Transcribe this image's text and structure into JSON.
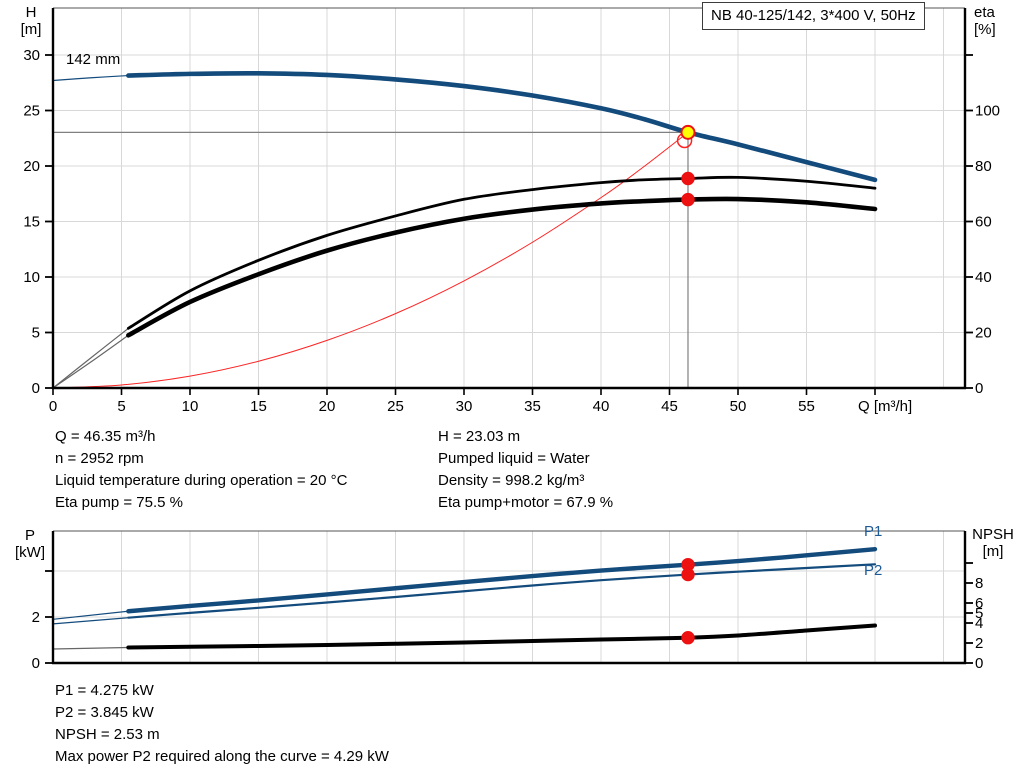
{
  "window": {
    "title_box": "NB 40-125/142, 3*400 V, 50Hz"
  },
  "colors": {
    "curve_blue": "#134b7d",
    "curve_black": "#000000",
    "marker_red": "#ee1111",
    "marker_yellow": "#ffff00",
    "system_red": "#ff2222",
    "grid": "#d8d8d8",
    "crosshair": "#808080",
    "axis": "#000000",
    "thin_start": "#666666"
  },
  "labels": {
    "h_axis": [
      "H",
      "[m]"
    ],
    "eta_axis": [
      "eta",
      "[%]"
    ],
    "q_axis": "Q [m³/h]",
    "p_axis": [
      "P",
      "[kW]"
    ],
    "npsh_axis": [
      "NPSH",
      "[m]"
    ],
    "impeller": "142 mm",
    "p1": "P1",
    "p2": "P2"
  },
  "info_top_left": [
    "Q = 46.35 m³/h",
    "n = 2952 rpm",
    "Liquid temperature during operation = 20 °C",
    "Eta pump = 75.5 %"
  ],
  "info_top_right": [
    "H = 23.03 m",
    "Pumped liquid = Water",
    "Density = 998.2 kg/m³",
    "Eta pump+motor = 67.9 %"
  ],
  "info_bottom": [
    "P1 = 4.275 kW",
    "P2 = 3.845 kW",
    "NPSH = 2.53 m",
    "Max power P2 required along the curve = 4.29 kW"
  ],
  "duty": {
    "q": 46.35,
    "h": 23.03,
    "eta_pump": 75.5,
    "eta_pump_motor": 67.9,
    "p1": 4.275,
    "p2": 3.845,
    "npsh": 2.53
  },
  "chart_data": [
    {
      "id": "hq",
      "type": "line",
      "title": "",
      "xlabel": "Q [m³/h]",
      "ylabel_left": "H [m]",
      "ylabel_right": "eta [%]",
      "x_axis": {
        "ticks_labeled": [
          0,
          5,
          10,
          15,
          20,
          25,
          30,
          35,
          40,
          45,
          50,
          55
        ],
        "ticks_unlabeled": [
          60
        ],
        "gridlines": [
          5,
          10,
          15,
          20,
          25,
          30,
          35,
          40,
          45,
          50,
          55,
          60,
          65
        ],
        "range": [
          0,
          66.6
        ]
      },
      "left_axis": {
        "ticks_labeled": [
          0,
          5,
          10,
          15,
          20,
          25,
          30
        ],
        "gridlines": [
          5,
          10,
          15,
          20,
          25,
          30
        ],
        "range": [
          0,
          34.2
        ]
      },
      "right_axis": {
        "ticks_labeled": [
          0,
          20,
          40,
          60,
          80,
          100
        ],
        "ticks_unlabeled": [
          120
        ],
        "range": [
          0,
          136.9
        ]
      },
      "series": [
        {
          "name": "system-curve",
          "axis": "left",
          "color": "system_red",
          "width": 1,
          "split": null,
          "points": [
            [
              0,
              0
            ],
            [
              5,
              0.27
            ],
            [
              10,
              1.07
            ],
            [
              15,
              2.41
            ],
            [
              20,
              4.29
            ],
            [
              25,
              6.7
            ],
            [
              30,
              9.65
            ],
            [
              35,
              13.13
            ],
            [
              40,
              17.15
            ],
            [
              43,
              19.82
            ],
            [
              46.35,
              23.03
            ]
          ]
        },
        {
          "name": "eta-pump-curve",
          "axis": "right",
          "color": "curve_black",
          "width": 2.8,
          "split": 5.5,
          "points": [
            [
              0,
              0
            ],
            [
              2.8,
              11
            ],
            [
              5.5,
              21.5
            ],
            [
              10,
              35
            ],
            [
              15,
              46
            ],
            [
              20,
              55
            ],
            [
              25,
              62
            ],
            [
              30,
              68
            ],
            [
              35,
              71.5
            ],
            [
              40,
              74
            ],
            [
              43,
              75
            ],
            [
              46.35,
              75.5
            ],
            [
              50,
              75.9
            ],
            [
              55,
              74.5
            ],
            [
              60,
              72
            ]
          ]
        },
        {
          "name": "eta-pump-motor-curve",
          "axis": "right",
          "color": "curve_black",
          "width": 4.6,
          "split": 5.5,
          "points": [
            [
              0,
              0
            ],
            [
              2.8,
              9.5
            ],
            [
              5.5,
              19
            ],
            [
              10,
              31
            ],
            [
              15,
              41
            ],
            [
              20,
              49.5
            ],
            [
              25,
              56
            ],
            [
              30,
              61
            ],
            [
              35,
              64.3
            ],
            [
              40,
              66.5
            ],
            [
              43,
              67.3
            ],
            [
              46.35,
              67.9
            ],
            [
              50,
              68.1
            ],
            [
              55,
              66.9
            ],
            [
              60,
              64.5
            ]
          ]
        },
        {
          "name": "pump-curve",
          "axis": "left",
          "color": "curve_blue",
          "width": 4.6,
          "split": 5.5,
          "points": [
            [
              0,
              27.7
            ],
            [
              2.8,
              27.95
            ],
            [
              5.5,
              28.15
            ],
            [
              10,
              28.3
            ],
            [
              15,
              28.35
            ],
            [
              20,
              28.2
            ],
            [
              25,
              27.8
            ],
            [
              30,
              27.2
            ],
            [
              35,
              26.35
            ],
            [
              40,
              25.2
            ],
            [
              43.2,
              24.2
            ],
            [
              46.35,
              23.03
            ],
            [
              50,
              21.95
            ],
            [
              55,
              20.35
            ],
            [
              60,
              18.75
            ]
          ]
        }
      ],
      "markers": {
        "crosshair": {
          "q": 46.35,
          "h": 23.03
        },
        "duty_ring": {
          "q": 46.1,
          "h": 22.3
        },
        "duty_point": {
          "q": 46.35,
          "h": 23.03
        },
        "dots": [
          {
            "q": 46.35,
            "v": 75.5,
            "axis": "right"
          },
          {
            "q": 46.35,
            "v": 67.9,
            "axis": "right"
          }
        ]
      }
    },
    {
      "id": "power_npsh",
      "type": "line",
      "title": "",
      "xlabel": "",
      "ylabel_left": "P [kW]",
      "ylabel_right": "NPSH [m]",
      "x_axis": {
        "ticks_labeled": [],
        "ticks_unlabeled": [],
        "gridlines": [
          5,
          10,
          15,
          20,
          25,
          30,
          35,
          40,
          45,
          50,
          55,
          60,
          65
        ],
        "range": [
          0,
          66.6
        ]
      },
      "left_axis": {
        "ticks_labeled": [
          0,
          2
        ],
        "ticks_unlabeled": [
          4
        ],
        "gridlines": [
          2,
          4
        ],
        "range": [
          0,
          5.74
        ]
      },
      "right_axis": {
        "ticks_labeled": [
          0,
          2,
          4,
          5,
          6,
          8
        ],
        "ticks_unlabeled": [
          10
        ],
        "range": [
          0,
          13.2
        ]
      },
      "series": [
        {
          "name": "npsh-curve",
          "axis": "right",
          "color": "curve_black",
          "width": 4,
          "split": 5.5,
          "points": [
            [
              0,
              1.4
            ],
            [
              5.5,
              1.55
            ],
            [
              10,
              1.62
            ],
            [
              15,
              1.7
            ],
            [
              20,
              1.8
            ],
            [
              25,
              1.92
            ],
            [
              30,
              2.05
            ],
            [
              35,
              2.2
            ],
            [
              40,
              2.35
            ],
            [
              46.35,
              2.53
            ],
            [
              50,
              2.75
            ],
            [
              55,
              3.25
            ],
            [
              60,
              3.75
            ]
          ]
        },
        {
          "name": "p2-curve",
          "axis": "left",
          "color": "curve_blue",
          "width": 2.2,
          "split": 5.5,
          "points": [
            [
              0,
              1.7
            ],
            [
              5.5,
              1.97
            ],
            [
              10,
              2.18
            ],
            [
              15,
              2.4
            ],
            [
              20,
              2.63
            ],
            [
              25,
              2.87
            ],
            [
              30,
              3.12
            ],
            [
              35,
              3.37
            ],
            [
              40,
              3.6
            ],
            [
              46.35,
              3.845
            ],
            [
              50,
              3.97
            ],
            [
              55,
              4.13
            ],
            [
              60,
              4.29
            ]
          ]
        },
        {
          "name": "p1-curve",
          "axis": "left",
          "color": "curve_blue",
          "width": 4.4,
          "split": 5.5,
          "points": [
            [
              0,
              1.9
            ],
            [
              5.5,
              2.25
            ],
            [
              10,
              2.48
            ],
            [
              15,
              2.72
            ],
            [
              20,
              2.98
            ],
            [
              25,
              3.25
            ],
            [
              30,
              3.52
            ],
            [
              35,
              3.78
            ],
            [
              40,
              4.02
            ],
            [
              46.35,
              4.275
            ],
            [
              50,
              4.43
            ],
            [
              55,
              4.68
            ],
            [
              60,
              4.95
            ]
          ]
        }
      ],
      "markers": {
        "dots": [
          {
            "q": 46.35,
            "v": 4.275,
            "axis": "left"
          },
          {
            "q": 46.35,
            "v": 3.845,
            "axis": "left"
          },
          {
            "q": 46.35,
            "v": 2.53,
            "axis": "right"
          }
        ]
      }
    }
  ]
}
